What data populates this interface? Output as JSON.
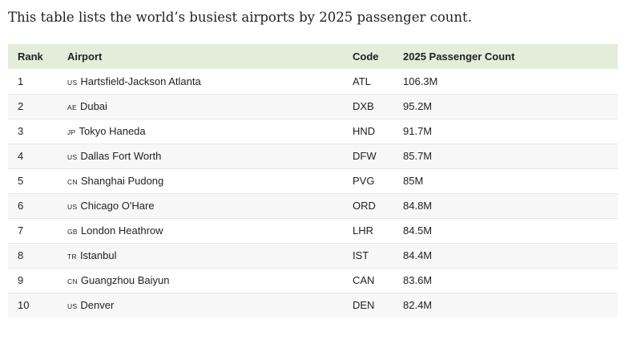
{
  "intro": "This table lists the world’s busiest airports by 2025 passenger count.",
  "table": {
    "headers": {
      "rank": "Rank",
      "airport": "Airport",
      "code": "Code",
      "count": "2025 Passenger Count"
    },
    "rows": [
      {
        "rank": "1",
        "country": "us",
        "airport": "Hartsfield-Jackson Atlanta",
        "code": "ATL",
        "count": "106.3M"
      },
      {
        "rank": "2",
        "country": "ae",
        "airport": "Dubai",
        "code": "DXB",
        "count": "95.2M"
      },
      {
        "rank": "3",
        "country": "jp",
        "airport": "Tokyo Haneda",
        "code": "HND",
        "count": "91.7M"
      },
      {
        "rank": "4",
        "country": "us",
        "airport": "Dallas Fort Worth",
        "code": "DFW",
        "count": "85.7M"
      },
      {
        "rank": "5",
        "country": "cn",
        "airport": "Shanghai Pudong",
        "code": "PVG",
        "count": "85M"
      },
      {
        "rank": "6",
        "country": "us",
        "airport": "Chicago O'Hare",
        "code": "ORD",
        "count": "84.8M"
      },
      {
        "rank": "7",
        "country": "gb",
        "airport": "London Heathrow",
        "code": "LHR",
        "count": "84.5M"
      },
      {
        "rank": "8",
        "country": "tr",
        "airport": "Istanbul",
        "code": "IST",
        "count": "84.4M"
      },
      {
        "rank": "9",
        "country": "cn",
        "airport": "Guangzhou Baiyun",
        "code": "CAN",
        "count": "83.6M"
      },
      {
        "rank": "10",
        "country": "us",
        "airport": "Denver",
        "code": "DEN",
        "count": "82.4M"
      }
    ]
  }
}
